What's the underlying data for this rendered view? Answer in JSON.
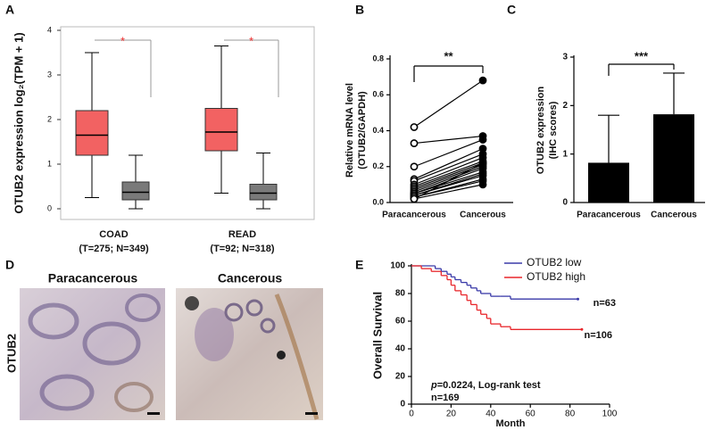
{
  "chart_data": [
    {
      "type": "box",
      "label": "A",
      "ylabel": "OTUB2 expression log₂(TPM + 1)",
      "categories": [
        "COAD",
        "READ"
      ],
      "category_notes": [
        "(T=275; N=349)",
        "(T=92; N=318)"
      ],
      "ylim": [
        -0.24,
        4.08
      ],
      "yticks": [
        0,
        1,
        2,
        3,
        4
      ],
      "annotations": [
        "*",
        "*"
      ],
      "series": [
        {
          "color": "#f26262",
          "min": [
            0.25,
            0.35
          ],
          "q1": [
            1.2,
            1.3
          ],
          "median": [
            1.65,
            1.72
          ],
          "q3": [
            2.2,
            2.25
          ],
          "max": [
            3.5,
            3.65
          ]
        },
        {
          "color": "#7a7a7a",
          "min": [
            0,
            0
          ],
          "q1": [
            0.2,
            0.2
          ],
          "median": [
            0.37,
            0.35
          ],
          "q3": [
            0.6,
            0.55
          ],
          "max": [
            1.2,
            1.25
          ]
        }
      ]
    },
    {
      "type": "paired",
      "label": "B",
      "ylabel": [
        "Relative mRNA level",
        "(OTUB2/GAPDH)"
      ],
      "categories": [
        "Paracancerous",
        "Cancerous"
      ],
      "annotation": "**",
      "ylim": [
        0,
        0.8
      ],
      "yticks": [
        {
          "value": 0,
          "label": "0.0"
        },
        0.2,
        0.4,
        0.6,
        0.8
      ],
      "pairs": [
        [
          0.42,
          0.68
        ],
        [
          0.33,
          0.37
        ],
        [
          0.2,
          0.35
        ],
        [
          0.13,
          0.3
        ],
        [
          0.12,
          0.27
        ],
        [
          0.1,
          0.25
        ],
        [
          0.09,
          0.23
        ],
        [
          0.08,
          0.22
        ],
        [
          0.07,
          0.21
        ],
        [
          0.06,
          0.2
        ],
        [
          0.05,
          0.19
        ],
        [
          0.05,
          0.17
        ],
        [
          0.04,
          0.16
        ],
        [
          0.04,
          0.15
        ],
        [
          0.03,
          0.13
        ],
        [
          0.03,
          0.12
        ],
        [
          0.02,
          0.1
        ],
        [
          0.02,
          0.22
        ]
      ]
    },
    {
      "type": "bar",
      "label": "C",
      "ylabel": [
        "OTUB2 expression",
        "(IHC scores)"
      ],
      "categories": [
        "Paracancerous",
        "Cancerous"
      ],
      "annotation": "***",
      "color": "#000000",
      "values": [
        0.82,
        1.82
      ],
      "errors": [
        0.98,
        0.85
      ],
      "ylim": [
        0,
        3
      ],
      "yticks": [
        0,
        1,
        2,
        3
      ]
    },
    {
      "type": "survival",
      "label": "E",
      "xlabel": "Month",
      "ylabel": "Overall Survival",
      "xlim": [
        0,
        100
      ],
      "xticks": [
        0,
        20,
        40,
        60,
        80,
        100
      ],
      "ylim": [
        0,
        100
      ],
      "yticks": [
        0,
        20,
        40,
        60,
        80,
        100
      ],
      "annotation": [
        "p",
        "=0.0224, Log-rank test",
        "n=169"
      ],
      "series": [
        {
          "name": "OTUB2 low",
          "color": "#3a3aa8",
          "n_label": "n=63",
          "x": [
            0,
            12,
            15,
            18,
            20,
            22,
            25,
            28,
            30,
            33,
            35,
            40,
            45,
            50,
            84
          ],
          "y": [
            100,
            98,
            96,
            94,
            92,
            90,
            88,
            86,
            84,
            82,
            80,
            78,
            78,
            76,
            76
          ]
        },
        {
          "name": "OTUB2 high",
          "color": "#e8262b",
          "n_label": "n=106",
          "x": [
            0,
            5,
            10,
            15,
            18,
            20,
            22,
            25,
            28,
            30,
            33,
            35,
            38,
            40,
            45,
            50,
            86
          ],
          "y": [
            100,
            98,
            96,
            93,
            90,
            86,
            82,
            79,
            75,
            72,
            68,
            65,
            62,
            58,
            56,
            54,
            54
          ]
        }
      ]
    }
  ],
  "panel_d": {
    "label": "D",
    "titles": [
      "Paracancerous",
      "Cancerous"
    ],
    "row_label": "OTUB2"
  }
}
